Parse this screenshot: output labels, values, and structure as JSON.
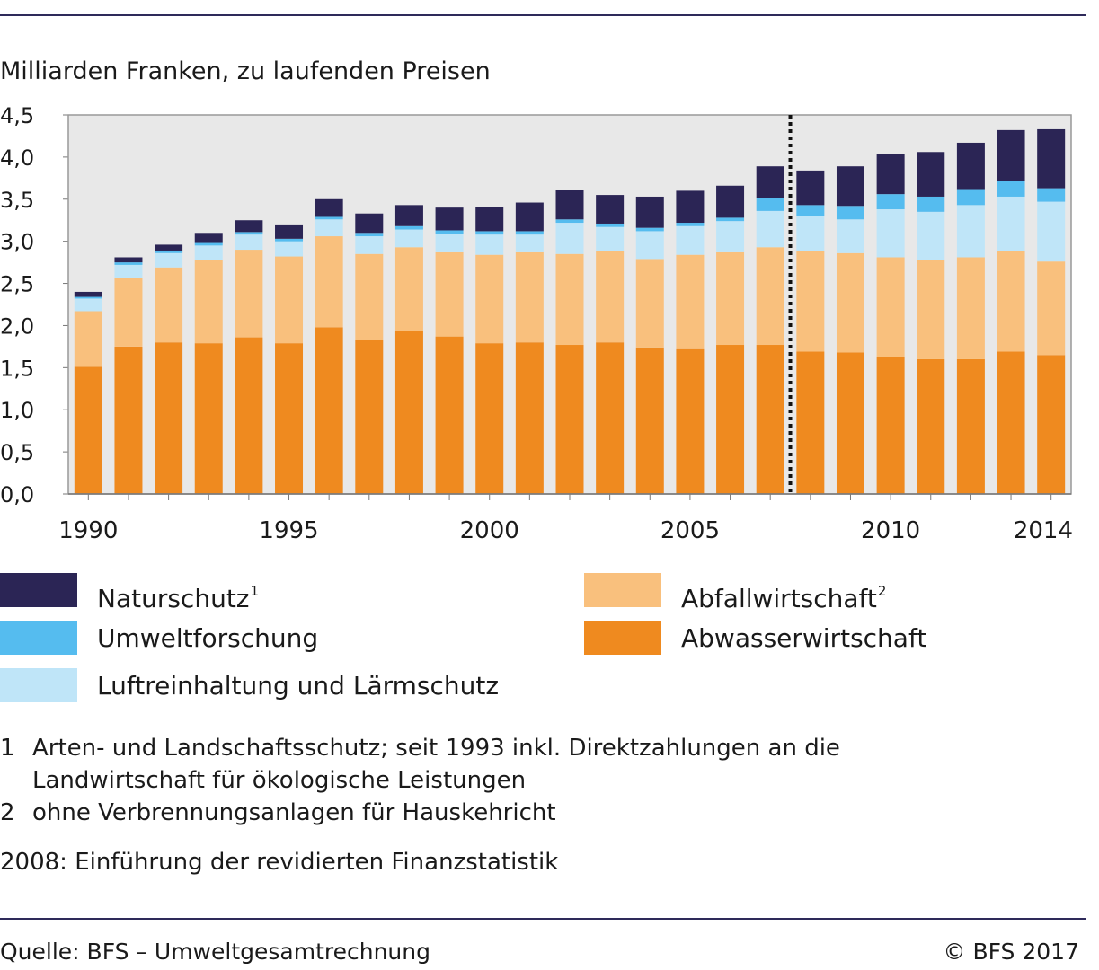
{
  "chart_data": {
    "type": "stacked-bar",
    "ylabel": "Milliarden Franken, zu laufenden Preisen",
    "ylim": [
      0,
      4.5
    ],
    "yticks": [
      "0,0",
      "0,5",
      "1,0",
      "1,5",
      "2,0",
      "2,5",
      "3,0",
      "3,5",
      "4,0",
      "4,5"
    ],
    "categories": [
      1990,
      1991,
      1992,
      1993,
      1994,
      1995,
      1996,
      1997,
      1998,
      1999,
      2000,
      2001,
      2002,
      2003,
      2004,
      2005,
      2006,
      2007,
      2008,
      2009,
      2010,
      2011,
      2012,
      2013,
      2014
    ],
    "xtick_labels": [
      "1990",
      "1995",
      "2000",
      "2005",
      "2010",
      "2014"
    ],
    "break_after": 2007,
    "series": [
      {
        "name": "Abwasserwirtschaft",
        "color": "#ef8a1f",
        "values": [
          1.51,
          1.75,
          1.8,
          1.79,
          1.86,
          1.79,
          1.98,
          1.83,
          1.94,
          1.87,
          1.79,
          1.8,
          1.77,
          1.8,
          1.74,
          1.72,
          1.77,
          1.77,
          1.69,
          1.68,
          1.63,
          1.6,
          1.6,
          1.69,
          1.65
        ]
      },
      {
        "name": "Abfallwirtschaft",
        "color": "#f9c07d",
        "values": [
          0.66,
          0.82,
          0.89,
          0.99,
          1.04,
          1.03,
          1.08,
          1.02,
          0.99,
          1.0,
          1.05,
          1.07,
          1.08,
          1.09,
          1.05,
          1.12,
          1.1,
          1.16,
          1.19,
          1.18,
          1.18,
          1.18,
          1.21,
          1.19,
          1.11
        ]
      },
      {
        "name": "Luftreinhaltung und Lärmschutz",
        "color": "#bfe5f8",
        "values": [
          0.15,
          0.15,
          0.17,
          0.17,
          0.18,
          0.18,
          0.2,
          0.21,
          0.21,
          0.22,
          0.24,
          0.21,
          0.37,
          0.28,
          0.33,
          0.34,
          0.37,
          0.43,
          0.42,
          0.4,
          0.57,
          0.57,
          0.62,
          0.65,
          0.71
        ]
      },
      {
        "name": "Umweltforschung",
        "color": "#55bcef",
        "values": [
          0.02,
          0.03,
          0.03,
          0.03,
          0.03,
          0.03,
          0.03,
          0.04,
          0.04,
          0.04,
          0.04,
          0.04,
          0.04,
          0.04,
          0.04,
          0.04,
          0.04,
          0.15,
          0.13,
          0.16,
          0.18,
          0.18,
          0.19,
          0.19,
          0.16
        ]
      },
      {
        "name": "Naturschutz",
        "color": "#2b2555",
        "values": [
          0.06,
          0.06,
          0.07,
          0.12,
          0.14,
          0.17,
          0.21,
          0.23,
          0.25,
          0.27,
          0.29,
          0.34,
          0.35,
          0.34,
          0.37,
          0.38,
          0.38,
          0.38,
          0.41,
          0.47,
          0.48,
          0.53,
          0.55,
          0.6,
          0.7
        ]
      }
    ]
  },
  "legend": {
    "naturschutz": {
      "label": "Naturschutz",
      "sup": "1"
    },
    "umweltforschung": {
      "label": "Umweltforschung"
    },
    "luft": {
      "label": "Luftreinhaltung und Lärmschutz"
    },
    "abfall": {
      "label": "Abfallwirtschaft",
      "sup": "2"
    },
    "abwasser": {
      "label": "Abwasserwirtschaft"
    }
  },
  "footnotes": [
    {
      "num": "1",
      "text": "Arten- und Landschaftsschutz; seit 1993 inkl. Direktzahlungen an die Landwirtschaft für ökologische Leistungen"
    },
    {
      "num": "2",
      "text": "ohne Verbrennungsanlagen für Hauskehricht"
    }
  ],
  "remark": "2008: Einführung der revidierten Finanzstatistik",
  "source": "Quelle: BFS – Umweltgesamtrechnung",
  "copyright": "© BFS 2017"
}
